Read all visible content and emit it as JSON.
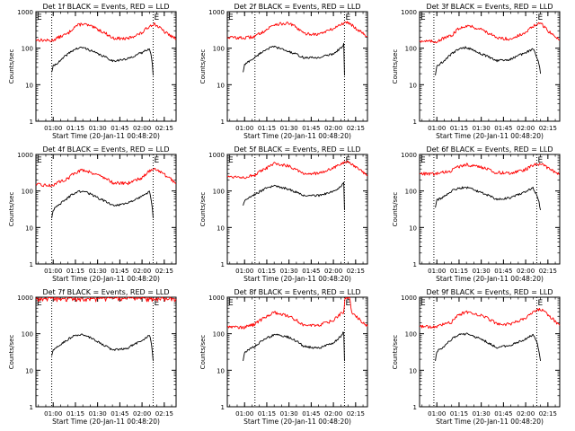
{
  "chart_data": {
    "type": "line",
    "layout": "3x3 grid of panels",
    "y_scale": "log",
    "ylim": [
      1,
      1000
    ],
    "y_ticks": [
      "1",
      "10",
      "100",
      "1000"
    ],
    "ylabel": "Counts/sec",
    "xlabel": "Start Time (20-Jan-11 00:48:20)",
    "x_ticks": [
      "01:00",
      "01:15",
      "01:30",
      "01:45",
      "02:00",
      "02:15"
    ],
    "xlim": [
      "00:48:20",
      "02:23:00"
    ],
    "series_colors": {
      "events": "#000000",
      "lld": "#ff0000"
    },
    "markers": [
      {
        "label": "E",
        "time": "00:48:20"
      },
      {
        "label": "E",
        "time": "02:07:30"
      }
    ],
    "panels": [
      {
        "title": "Det 1f BLACK = Events, RED = LLD",
        "dotted_lines": [
          "00:59:00",
          "02:07:30"
        ],
        "data_start": "00:59:00",
        "data_end": "02:07:30",
        "series": [
          {
            "key": "lld",
            "times": [
              "00:48:20",
              "00:59",
              "01:10",
              "01:15",
              "01:20",
              "01:30",
              "01:40",
              "01:50",
              "02:00",
              "02:05",
              "02:08",
              "02:15",
              "02:20",
              "02:23"
            ],
            "values": [
              170,
              160,
              250,
              400,
              470,
              330,
              190,
              180,
              260,
              400,
              470,
              280,
              210,
              180
            ]
          },
          {
            "key": "events",
            "times": [
              "00:59",
              "01:00",
              "01:05",
              "01:10",
              "01:15",
              "01:20",
              "01:30",
              "01:40",
              "01:50",
              "02:00",
              "02:05",
              "02:07:30"
            ],
            "values": [
              22,
              32,
              45,
              70,
              95,
              105,
              70,
              45,
              50,
              75,
              100,
              18
            ]
          }
        ]
      },
      {
        "title": "Det 2f BLACK = Events, RED = LLD",
        "dotted_lines": [
          "01:07:00",
          "02:07:30"
        ],
        "data_start": "00:59:00",
        "data_end": "02:07:30",
        "series": [
          {
            "key": "lld",
            "times": [
              "00:48:20",
              "01:00",
              "01:07",
              "01:15",
              "01:20",
              "01:30",
              "01:40",
              "01:50",
              "02:00",
              "02:05",
              "02:10",
              "02:15",
              "02:20",
              "02:23"
            ],
            "values": [
              200,
              190,
              210,
              320,
              450,
              480,
              250,
              240,
              340,
              450,
              520,
              350,
              260,
              210
            ]
          },
          {
            "key": "events",
            "times": [
              "00:59",
              "01:00",
              "01:07",
              "01:15",
              "01:20",
              "01:30",
              "01:40",
              "01:50",
              "02:00",
              "02:05",
              "02:07",
              "02:07:30"
            ],
            "values": [
              22,
              35,
              55,
              95,
              110,
              80,
              55,
              55,
              70,
              100,
              130,
              18
            ]
          }
        ]
      },
      {
        "title": "Det 3f BLACK = Events, RED = LLD",
        "dotted_lines": [
          "00:58:00",
          "02:07:30"
        ],
        "data_start": "00:59:00",
        "data_end": "02:10:00",
        "series": [
          {
            "key": "lld",
            "times": [
              "00:48:20",
              "00:59",
              "01:10",
              "01:15",
              "01:20",
              "01:30",
              "01:40",
              "01:50",
              "02:00",
              "02:05",
              "02:10",
              "02:15",
              "02:20",
              "02:23"
            ],
            "values": [
              160,
              150,
              220,
              350,
              420,
              330,
              190,
              180,
              260,
              400,
              480,
              300,
              200,
              170
            ]
          },
          {
            "key": "events",
            "times": [
              "00:59",
              "01:00",
              "01:05",
              "01:10",
              "01:15",
              "01:20",
              "01:30",
              "01:40",
              "01:50",
              "02:00",
              "02:05",
              "02:10"
            ],
            "values": [
              18,
              32,
              45,
              70,
              95,
              105,
              70,
              45,
              50,
              75,
              95,
              20
            ]
          }
        ]
      },
      {
        "title": "Det 4f BLACK = Events, RED = LLD",
        "dotted_lines": [
          "00:59:00",
          "02:07:30"
        ],
        "data_start": "00:59:00",
        "data_end": "02:07:30",
        "series": [
          {
            "key": "lld",
            "times": [
              "00:48:20",
              "00:59",
              "01:10",
              "01:15",
              "01:20",
              "01:30",
              "01:40",
              "01:50",
              "02:00",
              "02:05",
              "02:08",
              "02:15",
              "02:20",
              "02:23"
            ],
            "values": [
              150,
              140,
              220,
              320,
              380,
              280,
              170,
              160,
              230,
              350,
              420,
              280,
              200,
              160
            ]
          },
          {
            "key": "events",
            "times": [
              "00:59",
              "01:00",
              "01:05",
              "01:10",
              "01:15",
              "01:20",
              "01:30",
              "01:40",
              "01:50",
              "02:00",
              "02:05",
              "02:07:30"
            ],
            "values": [
              18,
              30,
              45,
              65,
              90,
              100,
              65,
              40,
              45,
              70,
              95,
              18
            ]
          }
        ]
      },
      {
        "title": "Det 5f BLACK = Events, RED = LLD",
        "dotted_lines": [
          "01:07:00",
          "02:07:30"
        ],
        "data_start": "00:59:00",
        "data_end": "02:07:30",
        "series": [
          {
            "key": "lld",
            "times": [
              "00:48:20",
              "01:00",
              "01:07",
              "01:15",
              "01:20",
              "01:30",
              "01:40",
              "01:50",
              "02:00",
              "02:05",
              "02:10",
              "02:15",
              "02:20",
              "02:23"
            ],
            "values": [
              250,
              240,
              270,
              420,
              560,
              480,
              300,
              300,
              420,
              560,
              620,
              440,
              320,
              260
            ]
          },
          {
            "key": "events",
            "times": [
              "00:59",
              "01:00",
              "01:07",
              "01:15",
              "01:20",
              "01:30",
              "01:40",
              "01:50",
              "02:00",
              "02:05",
              "02:07",
              "02:07:30"
            ],
            "values": [
              40,
              55,
              80,
              120,
              140,
              110,
              75,
              75,
              95,
              130,
              170,
              30
            ]
          }
        ]
      },
      {
        "title": "Det 6f BLACK = Events, RED = LLD",
        "dotted_lines": [
          "00:58:00",
          "02:07:30"
        ],
        "data_start": "00:59:00",
        "data_end": "02:10:00",
        "series": [
          {
            "key": "lld",
            "times": [
              "00:48:20",
              "00:59",
              "01:10",
              "01:15",
              "01:20",
              "01:30",
              "01:40",
              "01:50",
              "02:00",
              "02:05",
              "02:10",
              "02:15",
              "02:20",
              "02:23"
            ],
            "values": [
              300,
              290,
              360,
              470,
              530,
              450,
              320,
              310,
              390,
              510,
              560,
              420,
              320,
              280
            ]
          },
          {
            "key": "events",
            "times": [
              "00:59",
              "01:00",
              "01:05",
              "01:10",
              "01:15",
              "01:20",
              "01:30",
              "01:40",
              "01:50",
              "02:00",
              "02:05",
              "02:10"
            ],
            "values": [
              35,
              55,
              70,
              100,
              120,
              125,
              90,
              60,
              65,
              95,
              120,
              30
            ]
          }
        ]
      },
      {
        "title": "Det 7f BLACK = Events, RED = LLD",
        "dotted_lines": [
          "00:59:00",
          "02:07:30"
        ],
        "data_start": "00:59:00",
        "data_end": "02:07:30",
        "series": [
          {
            "key": "lld",
            "times": [
              "00:48:20",
              "00:59",
              "01:10",
              "01:20",
              "01:30",
              "01:40",
              "01:50",
              "02:00",
              "02:10",
              "02:20",
              "02:23"
            ],
            "values": [
              1000,
              1000,
              1000,
              1000,
              1000,
              1000,
              1000,
              1000,
              1000,
              1000,
              1000
            ]
          },
          {
            "key": "events",
            "times": [
              "00:59",
              "01:00",
              "01:05",
              "01:10",
              "01:15",
              "01:20",
              "01:30",
              "01:40",
              "01:50",
              "02:00",
              "02:05",
              "02:07:30"
            ],
            "values": [
              25,
              35,
              50,
              70,
              90,
              95,
              60,
              35,
              40,
              65,
              90,
              18
            ]
          }
        ]
      },
      {
        "title": "Det 8f BLACK = Events, RED = LLD",
        "dotted_lines": [
          "01:07:00",
          "02:07:30"
        ],
        "data_start": "00:59:00",
        "data_end": "02:07:30",
        "series": [
          {
            "key": "lld",
            "times": [
              "00:48:20",
              "01:00",
              "01:07",
              "01:15",
              "01:20",
              "01:30",
              "01:40",
              "01:50",
              "02:00",
              "02:05",
              "02:07",
              "02:08",
              "02:11",
              "02:12",
              "02:15",
              "02:20",
              "02:23"
            ],
            "values": [
              160,
              150,
              180,
              300,
              380,
              300,
              170,
              170,
              230,
              350,
              380,
              1000,
              1000,
              380,
              300,
              200,
              160
            ]
          },
          {
            "key": "events",
            "times": [
              "00:59",
              "01:00",
              "01:07",
              "01:15",
              "01:20",
              "01:30",
              "01:40",
              "01:50",
              "02:00",
              "02:05",
              "02:07",
              "02:07:30"
            ],
            "values": [
              18,
              30,
              45,
              75,
              95,
              80,
              45,
              40,
              55,
              85,
              110,
              18
            ]
          }
        ]
      },
      {
        "title": "Det 9f BLACK = Events, RED = LLD",
        "dotted_lines": [
          "00:58:00",
          "02:07:30"
        ],
        "data_start": "00:59:00",
        "data_end": "02:10:00",
        "series": [
          {
            "key": "lld",
            "times": [
              "00:48:20",
              "00:59",
              "01:10",
              "01:15",
              "01:20",
              "01:30",
              "01:40",
              "01:50",
              "02:00",
              "02:05",
              "02:10",
              "02:15",
              "02:20",
              "02:23"
            ],
            "values": [
              160,
              150,
              210,
              330,
              400,
              320,
              190,
              180,
              260,
              380,
              480,
              320,
              220,
              170
            ]
          },
          {
            "key": "events",
            "times": [
              "00:59",
              "01:00",
              "01:05",
              "01:10",
              "01:15",
              "01:20",
              "01:30",
              "01:40",
              "01:50",
              "02:00",
              "02:05",
              "02:10"
            ],
            "values": [
              18,
              32,
              45,
              70,
              95,
              100,
              70,
              42,
              48,
              72,
              95,
              18
            ]
          }
        ]
      }
    ]
  }
}
